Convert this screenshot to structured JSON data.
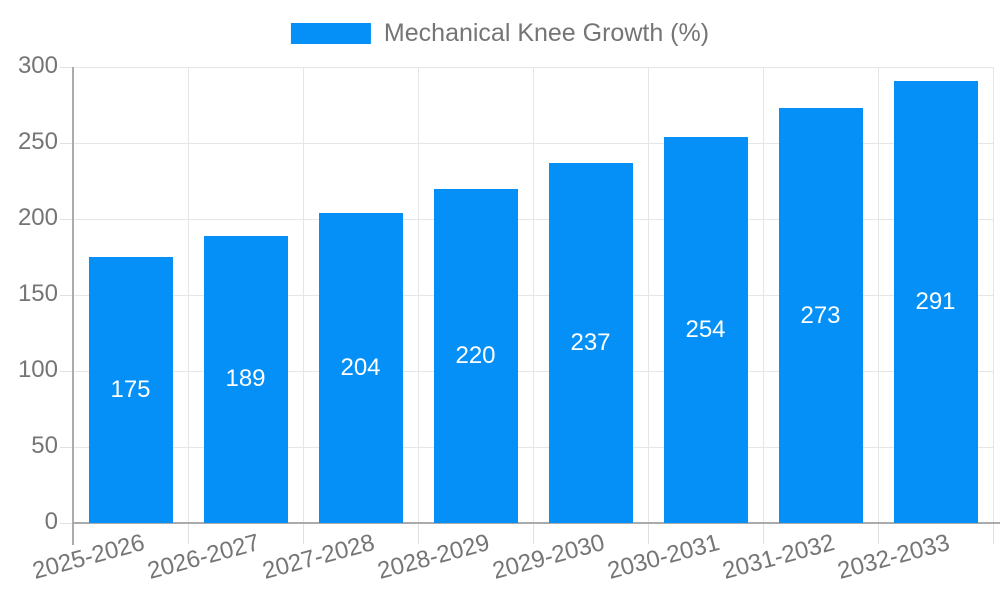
{
  "legend": {
    "label": "Mechanical Knee Growth (%)",
    "swatch_icon": "legend-color-swatch"
  },
  "chart_data": {
    "type": "bar",
    "title": "Mechanical Knee Growth (%)",
    "categories": [
      "2025-2026",
      "2026-2027",
      "2027-2028",
      "2028-2029",
      "2029-2030",
      "2030-2031",
      "2031-2032",
      "2032-2033"
    ],
    "values": [
      175,
      189,
      204,
      220,
      237,
      254,
      273,
      291
    ],
    "xlabel": "",
    "ylabel": "",
    "ylim": [
      0,
      300
    ],
    "yticks": [
      0,
      50,
      100,
      150,
      200,
      250,
      300
    ],
    "grid": true,
    "legend_position": "top-center",
    "x_label_rotation_deg": -15,
    "colors": {
      "bar": "#0590f8",
      "value_label": "#ffffff",
      "axis_text": "#757575",
      "gridline": "#e6e6e6",
      "tick_line": "#e0e0e0",
      "axis_line": "#ababab"
    }
  }
}
